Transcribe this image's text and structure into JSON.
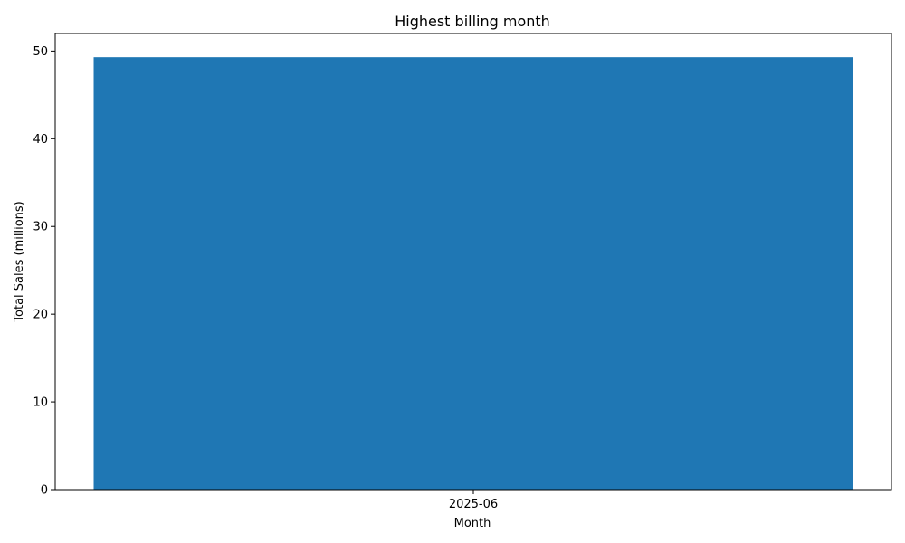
{
  "chart_data": {
    "type": "bar",
    "title": "Highest billing month",
    "xlabel": "Month",
    "ylabel": "Total Sales (millions)",
    "categories": [
      "2025-06"
    ],
    "series": [
      {
        "values": [
          49.3
        ]
      }
    ],
    "ylim": [
      0,
      52
    ],
    "yticks": [
      0,
      10,
      20,
      30,
      40,
      50
    ],
    "grid": false,
    "legend": "none",
    "bar_color": "#1f77b4",
    "axis_color": "#000000"
  }
}
